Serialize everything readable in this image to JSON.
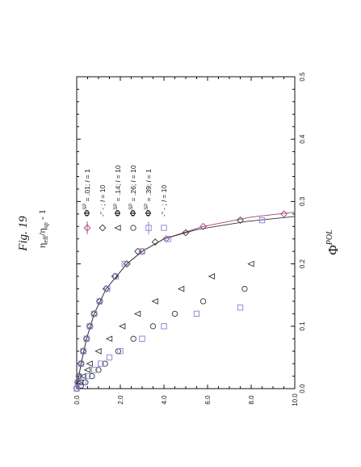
{
  "figure_caption": "Fig. 19",
  "chart_data": {
    "type": "scatter",
    "orientation": "rotated-90-ccw",
    "xlabel": "Φ",
    "xlabel_sup": "POL",
    "ylabel": "η",
    "ylabel_sub": "eff",
    "ylabel_mid": "/η",
    "ylabel_sub2": "sp",
    "ylabel_tail": " - 1",
    "xlim": [
      0.0,
      0.5
    ],
    "ylim": [
      0.0,
      10.0
    ],
    "x_ticks": [
      "0.0",
      "0.1",
      "0.2",
      "0.3",
      "0.4",
      "0.5"
    ],
    "y_ticks": [
      "0.0",
      "2.0",
      "4.0",
      "6.0",
      "8.0",
      "10.0"
    ],
    "grid": false,
    "legend_position": "top-right",
    "legend": [
      {
        "phi": "Φ",
        "sup": "SP",
        "text": " = .01; ",
        "l": "l",
        "tail": " = 1",
        "marker": "diamond",
        "color": "#a0407a",
        "line": true
      },
      {
        "phi": "",
        "sup": "",
        "text": "-\" - ; ",
        "l": "l",
        "tail": " = 10",
        "marker": "diamond",
        "color": "#333333",
        "line": false
      },
      {
        "phi": "Φ",
        "sup": "SP",
        "text": " = .14; ",
        "l": "l",
        "tail": " = 10",
        "marker": "triangle",
        "color": "#333333",
        "line": false
      },
      {
        "phi": "Φ",
        "sup": "SP",
        "text": " = .26; ",
        "l": "l",
        "tail": " = 10",
        "marker": "circle",
        "color": "#333333",
        "line": false
      },
      {
        "phi": "Φ",
        "sup": "SP",
        "text": " = .39; ",
        "l": "l",
        "tail": " = 1",
        "marker": "square",
        "color": "#8080d0",
        "line": true
      },
      {
        "phi": "",
        "sup": "",
        "text": "-\" - ; ",
        "l": "l",
        "tail": " = 10",
        "marker": "square",
        "color": "#8080d0",
        "line": false
      }
    ],
    "series": [
      {
        "marker": "diamond",
        "color": "#a0407a",
        "x": [
          0.0,
          0.01,
          0.02,
          0.04,
          0.06,
          0.08,
          0.1,
          0.12,
          0.14,
          0.16,
          0.18,
          0.2,
          0.22,
          0.24,
          0.26,
          0.28
        ],
        "y": [
          0.0,
          0.05,
          0.1,
          0.2,
          0.3,
          0.45,
          0.6,
          0.8,
          1.05,
          1.35,
          1.75,
          2.3,
          3.0,
          4.1,
          5.8,
          9.5
        ]
      },
      {
        "marker": "diamond",
        "color": "#333333",
        "x": [
          0.01,
          0.02,
          0.04,
          0.06,
          0.08,
          0.1,
          0.12,
          0.14,
          0.16,
          0.18,
          0.2,
          0.22,
          0.235,
          0.25,
          0.27
        ],
        "y": [
          0.05,
          0.1,
          0.2,
          0.3,
          0.45,
          0.6,
          0.8,
          1.05,
          1.35,
          1.75,
          2.3,
          2.8,
          3.6,
          5.0,
          7.5
        ]
      },
      {
        "marker": "triangle",
        "color": "#333333",
        "x": [
          0.01,
          0.02,
          0.03,
          0.04,
          0.06,
          0.08,
          0.1,
          0.12,
          0.14,
          0.16,
          0.18,
          0.2
        ],
        "y": [
          0.15,
          0.3,
          0.5,
          0.6,
          1.0,
          1.5,
          2.1,
          2.8,
          3.6,
          4.8,
          6.2,
          8.0
        ]
      },
      {
        "marker": "circle",
        "color": "#333333",
        "x": [
          0.005,
          0.01,
          0.02,
          0.03,
          0.04,
          0.06,
          0.08,
          0.1,
          0.12,
          0.14,
          0.16
        ],
        "y": [
          0.2,
          0.4,
          0.7,
          1.0,
          1.3,
          1.9,
          2.6,
          3.5,
          4.5,
          5.8,
          7.7
        ]
      },
      {
        "marker": "square",
        "color": "#8080d0",
        "x": [
          0.0,
          0.01,
          0.02,
          0.04,
          0.06,
          0.08,
          0.1,
          0.12,
          0.14,
          0.16,
          0.18,
          0.2,
          0.22,
          0.24,
          0.27
        ],
        "y": [
          0.0,
          0.05,
          0.1,
          0.2,
          0.3,
          0.45,
          0.6,
          0.8,
          1.05,
          1.4,
          1.8,
          2.2,
          3.0,
          4.2,
          8.5
        ]
      },
      {
        "marker": "square",
        "color": "#8080d0",
        "x": [
          0.01,
          0.02,
          0.03,
          0.04,
          0.05,
          0.06,
          0.08,
          0.1,
          0.12,
          0.13
        ],
        "y": [
          0.3,
          0.5,
          0.8,
          1.1,
          1.5,
          2.0,
          3.0,
          4.0,
          5.5,
          7.5
        ]
      }
    ],
    "curves": [
      {
        "color": "#a0407a",
        "x": [
          0.0,
          0.04,
          0.08,
          0.12,
          0.16,
          0.2,
          0.22,
          0.24,
          0.26,
          0.275,
          0.283
        ],
        "y": [
          0.0,
          0.2,
          0.45,
          0.8,
          1.35,
          2.3,
          3.0,
          4.0,
          5.8,
          8.0,
          10.0
        ]
      },
      {
        "color": "#333333",
        "x": [
          0.0,
          0.04,
          0.08,
          0.12,
          0.16,
          0.2,
          0.22,
          0.24,
          0.255,
          0.268,
          0.276
        ],
        "y": [
          0.0,
          0.2,
          0.45,
          0.8,
          1.35,
          2.3,
          3.0,
          4.0,
          5.5,
          7.8,
          10.0
        ]
      }
    ]
  }
}
